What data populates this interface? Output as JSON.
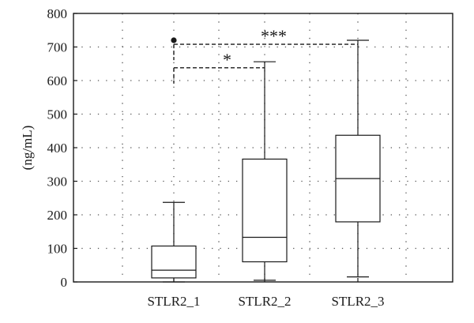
{
  "chart_data": {
    "type": "box",
    "ylabel": "(ng/mL)",
    "xlabel": "",
    "title": "",
    "ylim": [
      0,
      800
    ],
    "yticks": [
      0,
      100,
      200,
      300,
      400,
      500,
      600,
      700,
      800
    ],
    "grid": "dotted",
    "categories": [
      "STLR2_1",
      "STLR2_2",
      "STLR2_3"
    ],
    "boxes": [
      {
        "category": "STLR2_1",
        "whisker_low": 0,
        "q1": 12,
        "median": 35,
        "q3": 107,
        "whisker_high": 237,
        "outliers": [
          720
        ]
      },
      {
        "category": "STLR2_2",
        "whisker_low": 5,
        "q1": 60,
        "median": 133,
        "q3": 366,
        "whisker_high": 656,
        "outliers": []
      },
      {
        "category": "STLR2_3",
        "whisker_low": 15,
        "q1": 179,
        "median": 308,
        "q3": 437,
        "whisker_high": 720,
        "outliers": []
      }
    ],
    "significance": [
      {
        "from": "STLR2_1",
        "to": "STLR2_3",
        "y": 708,
        "label": "***"
      },
      {
        "from": "STLR2_1",
        "to": "STLR2_2",
        "y": 638,
        "label": "*"
      }
    ],
    "colors": {
      "line": "#1a1a1a",
      "grid": "#555555",
      "background": "#ffffff"
    }
  }
}
